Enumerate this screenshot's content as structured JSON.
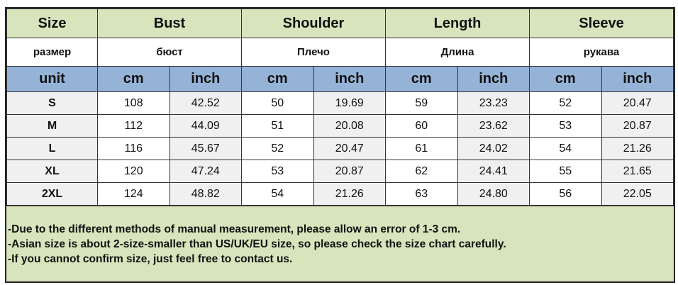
{
  "headers": {
    "size": "Size",
    "bust": "Bust",
    "shoulder": "Shoulder",
    "length": "Length",
    "sleeve": "Sleeve"
  },
  "headers_ru": {
    "size": "размер",
    "bust": "бюст",
    "shoulder": "Плечо",
    "length": "Длина",
    "sleeve": "рукава"
  },
  "units": {
    "label": "unit",
    "cm": "cm",
    "inch": "inch"
  },
  "rows": [
    {
      "size": "S",
      "values": [
        "108",
        "42.52",
        "50",
        "19.69",
        "59",
        "23.23",
        "52",
        "20.47"
      ]
    },
    {
      "size": "M",
      "values": [
        "112",
        "44.09",
        "51",
        "20.08",
        "60",
        "23.62",
        "53",
        "20.87"
      ]
    },
    {
      "size": "L",
      "values": [
        "116",
        "45.67",
        "52",
        "20.47",
        "61",
        "24.02",
        "54",
        "21.26"
      ]
    },
    {
      "size": "XL",
      "values": [
        "120",
        "47.24",
        "53",
        "20.87",
        "62",
        "24.41",
        "55",
        "21.65"
      ]
    },
    {
      "size": "2XL",
      "values": [
        "124",
        "48.82",
        "54",
        "21.26",
        "63",
        "24.80",
        "56",
        "22.05"
      ]
    }
  ],
  "notes": [
    "-Due to the different methods of manual measurement, please allow an error of 1-3 cm.",
    "-Asian size is about  2-size-smaller than US/UK/EU size, so please check the size chart carefully.",
    "-If you cannot confirm size, just feel free to contact us."
  ],
  "colors": {
    "header_green": "#d8e4bc",
    "unit_blue": "#95b3d7",
    "row_gray": "#f0f0f0"
  }
}
